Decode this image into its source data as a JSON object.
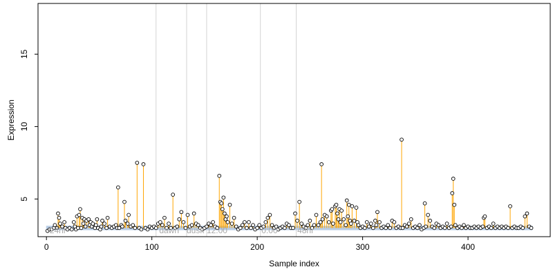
{
  "chart_data": {
    "type": "scatter",
    "title": "",
    "xlabel": "Sample index",
    "ylabel": "Expression",
    "xlim": [
      -8,
      478
    ],
    "ylim": [
      2.4,
      18.5
    ],
    "x_ticks": [
      0,
      100,
      200,
      300,
      400
    ],
    "y_ticks": [
      5,
      10,
      15
    ],
    "baseline": 3.0,
    "vertical_lines": [
      104,
      133,
      152,
      203,
      237
    ],
    "annotations": [
      {
        "label": "24hr",
        "x": 3
      },
      {
        "label": "dawn",
        "x": 107
      },
      {
        "label": "dusk",
        "x": 133
      },
      {
        "label": "12:00",
        "x": 152
      },
      {
        "label": "0:00",
        "x": 204
      },
      {
        "label": "48hr",
        "x": 238
      }
    ],
    "colors": {
      "spike": "#ffa500",
      "baseline_band": "#b9cde5",
      "point_edge": "#000000",
      "point_fill": "#ffffff",
      "vline": "#d3d3d3",
      "annotation": "#a8a8a8"
    },
    "series": [
      {
        "points": [
          [
            1,
            2.8
          ],
          [
            3,
            2.9
          ],
          [
            5,
            2.9
          ],
          [
            7,
            3.0
          ],
          [
            8,
            3.2
          ],
          [
            10,
            3.0
          ],
          [
            11,
            4.0
          ],
          [
            12,
            3.7
          ],
          [
            13,
            3.3
          ],
          [
            15,
            3.1
          ],
          [
            17,
            3.4
          ],
          [
            18,
            3.0
          ],
          [
            20,
            2.9
          ],
          [
            22,
            3.0
          ],
          [
            24,
            2.9
          ],
          [
            26,
            3.4
          ],
          [
            27,
            3.1
          ],
          [
            28,
            2.9
          ],
          [
            29,
            3.8
          ],
          [
            30,
            3.0
          ],
          [
            31,
            3.9
          ],
          [
            32,
            4.3
          ],
          [
            33,
            3.0
          ],
          [
            34,
            3.7
          ],
          [
            35,
            3.3
          ],
          [
            36,
            3.6
          ],
          [
            37,
            3.1
          ],
          [
            38,
            3.5
          ],
          [
            40,
            3.6
          ],
          [
            41,
            3.2
          ],
          [
            42,
            3.4
          ],
          [
            43,
            3.1
          ],
          [
            44,
            3.3
          ],
          [
            46,
            3.0
          ],
          [
            47,
            3.2
          ],
          [
            48,
            3.6
          ],
          [
            49,
            3.0
          ],
          [
            51,
            2.9
          ],
          [
            52,
            3.1
          ],
          [
            53,
            3.5
          ],
          [
            55,
            3.3
          ],
          [
            57,
            3.0
          ],
          [
            58,
            3.7
          ],
          [
            60,
            3.1
          ],
          [
            62,
            3.0
          ],
          [
            64,
            3.1
          ],
          [
            66,
            3.2
          ],
          [
            67,
            3.0
          ],
          [
            68,
            5.8
          ],
          [
            69,
            3.0
          ],
          [
            71,
            3.2
          ],
          [
            72,
            3.1
          ],
          [
            74,
            4.8
          ],
          [
            75,
            3.5
          ],
          [
            77,
            3.3
          ],
          [
            78,
            3.9
          ],
          [
            80,
            3.1
          ],
          [
            82,
            3.2
          ],
          [
            84,
            3.0
          ],
          [
            86,
            7.5
          ],
          [
            88,
            3.0
          ],
          [
            90,
            2.9
          ],
          [
            92,
            7.4
          ],
          [
            94,
            3.0
          ],
          [
            96,
            2.9
          ],
          [
            98,
            3.1
          ],
          [
            100,
            3.0
          ],
          [
            102,
            3.1
          ],
          [
            104,
            3.0
          ],
          [
            106,
            3.3
          ],
          [
            108,
            3.4
          ],
          [
            110,
            3.2
          ],
          [
            112,
            3.7
          ],
          [
            114,
            3.0
          ],
          [
            116,
            3.3
          ],
          [
            118,
            3.0
          ],
          [
            120,
            5.3
          ],
          [
            122,
            3.0
          ],
          [
            124,
            3.1
          ],
          [
            126,
            3.6
          ],
          [
            128,
            4.1
          ],
          [
            130,
            3.4
          ],
          [
            132,
            3.0
          ],
          [
            134,
            3.9
          ],
          [
            136,
            3.1
          ],
          [
            138,
            3.2
          ],
          [
            140,
            4.0
          ],
          [
            142,
            3.3
          ],
          [
            144,
            3.2
          ],
          [
            146,
            3.0
          ],
          [
            148,
            2.9
          ],
          [
            150,
            3.0
          ],
          [
            152,
            3.1
          ],
          [
            154,
            3.3
          ],
          [
            156,
            3.2
          ],
          [
            158,
            3.4
          ],
          [
            160,
            3.1
          ],
          [
            162,
            3.0
          ],
          [
            164,
            6.6
          ],
          [
            165,
            4.8
          ],
          [
            166,
            4.7
          ],
          [
            167,
            4.3
          ],
          [
            168,
            5.1
          ],
          [
            169,
            4.0
          ],
          [
            170,
            3.6
          ],
          [
            171,
            3.8
          ],
          [
            172,
            3.4
          ],
          [
            174,
            4.6
          ],
          [
            176,
            3.3
          ],
          [
            178,
            3.7
          ],
          [
            180,
            3.1
          ],
          [
            182,
            2.9
          ],
          [
            184,
            3.0
          ],
          [
            186,
            3.2
          ],
          [
            188,
            3.4
          ],
          [
            190,
            3.0
          ],
          [
            192,
            3.4
          ],
          [
            194,
            3.0
          ],
          [
            196,
            3.2
          ],
          [
            198,
            2.9
          ],
          [
            200,
            3.0
          ],
          [
            202,
            3.2
          ],
          [
            204,
            3.0
          ],
          [
            206,
            3.1
          ],
          [
            208,
            3.4
          ],
          [
            210,
            3.7
          ],
          [
            212,
            3.9
          ],
          [
            214,
            3.2
          ],
          [
            216,
            3.0
          ],
          [
            218,
            3.1
          ],
          [
            220,
            2.9
          ],
          [
            222,
            3.0
          ],
          [
            224,
            3.1
          ],
          [
            226,
            3.0
          ],
          [
            228,
            3.3
          ],
          [
            230,
            3.2
          ],
          [
            232,
            3.0
          ],
          [
            234,
            3.0
          ],
          [
            236,
            4.0
          ],
          [
            238,
            3.5
          ],
          [
            240,
            4.8
          ],
          [
            242,
            3.3
          ],
          [
            244,
            3.1
          ],
          [
            246,
            3.0
          ],
          [
            248,
            3.2
          ],
          [
            250,
            3.5
          ],
          [
            252,
            3.0
          ],
          [
            254,
            3.2
          ],
          [
            256,
            3.9
          ],
          [
            258,
            3.2
          ],
          [
            260,
            3.4
          ],
          [
            261,
            7.4
          ],
          [
            262,
            3.6
          ],
          [
            264,
            3.9
          ],
          [
            266,
            3.8
          ],
          [
            268,
            3.4
          ],
          [
            270,
            4.2
          ],
          [
            271,
            4.3
          ],
          [
            272,
            3.3
          ],
          [
            274,
            4.5
          ],
          [
            275,
            4.6
          ],
          [
            276,
            4.0
          ],
          [
            277,
            3.6
          ],
          [
            278,
            4.3
          ],
          [
            279,
            3.4
          ],
          [
            280,
            4.2
          ],
          [
            282,
            3.6
          ],
          [
            284,
            3.2
          ],
          [
            285,
            4.9
          ],
          [
            286,
            3.8
          ],
          [
            287,
            4.6
          ],
          [
            288,
            3.5
          ],
          [
            289,
            3.3
          ],
          [
            290,
            4.5
          ],
          [
            292,
            3.5
          ],
          [
            294,
            4.4
          ],
          [
            295,
            3.4
          ],
          [
            296,
            3.2
          ],
          [
            298,
            3.0
          ],
          [
            300,
            3.1
          ],
          [
            302,
            3.0
          ],
          [
            304,
            3.4
          ],
          [
            306,
            3.1
          ],
          [
            308,
            3.3
          ],
          [
            310,
            3.0
          ],
          [
            312,
            3.5
          ],
          [
            313,
            3.2
          ],
          [
            314,
            4.1
          ],
          [
            316,
            3.4
          ],
          [
            318,
            3.0
          ],
          [
            320,
            3.1
          ],
          [
            322,
            3.0
          ],
          [
            324,
            3.2
          ],
          [
            326,
            3.0
          ],
          [
            328,
            3.5
          ],
          [
            330,
            3.4
          ],
          [
            332,
            3.0
          ],
          [
            334,
            3.1
          ],
          [
            336,
            3.0
          ],
          [
            337,
            9.1
          ],
          [
            338,
            3.0
          ],
          [
            340,
            3.2
          ],
          [
            342,
            3.1
          ],
          [
            344,
            3.3
          ],
          [
            346,
            3.6
          ],
          [
            348,
            3.0
          ],
          [
            350,
            3.1
          ],
          [
            352,
            3.0
          ],
          [
            354,
            3.2
          ],
          [
            356,
            2.9
          ],
          [
            358,
            3.0
          ],
          [
            359,
            4.7
          ],
          [
            360,
            3.1
          ],
          [
            362,
            3.9
          ],
          [
            364,
            3.5
          ],
          [
            366,
            3.1
          ],
          [
            368,
            3.0
          ],
          [
            370,
            3.3
          ],
          [
            372,
            3.2
          ],
          [
            374,
            3.0
          ],
          [
            376,
            3.1
          ],
          [
            378,
            3.0
          ],
          [
            380,
            3.3
          ],
          [
            382,
            3.0
          ],
          [
            384,
            3.1
          ],
          [
            385,
            5.4
          ],
          [
            386,
            6.4
          ],
          [
            387,
            4.6
          ],
          [
            388,
            3.2
          ],
          [
            390,
            3.0
          ],
          [
            392,
            3.1
          ],
          [
            394,
            3.0
          ],
          [
            396,
            3.2
          ],
          [
            398,
            3.0
          ],
          [
            400,
            3.1
          ],
          [
            402,
            3.0
          ],
          [
            404,
            3.0
          ],
          [
            406,
            3.1
          ],
          [
            408,
            3.0
          ],
          [
            410,
            3.1
          ],
          [
            412,
            3.0
          ],
          [
            414,
            3.1
          ],
          [
            415,
            3.7
          ],
          [
            416,
            3.8
          ],
          [
            418,
            3.0
          ],
          [
            420,
            3.1
          ],
          [
            422,
            3.0
          ],
          [
            424,
            3.3
          ],
          [
            426,
            3.0
          ],
          [
            428,
            3.1
          ],
          [
            430,
            3.0
          ],
          [
            432,
            3.1
          ],
          [
            434,
            3.0
          ],
          [
            436,
            3.1
          ],
          [
            438,
            3.0
          ],
          [
            440,
            4.5
          ],
          [
            442,
            3.0
          ],
          [
            444,
            3.1
          ],
          [
            446,
            3.0
          ],
          [
            448,
            3.0
          ],
          [
            450,
            3.1
          ],
          [
            452,
            3.0
          ],
          [
            454,
            3.8
          ],
          [
            456,
            4.0
          ],
          [
            458,
            3.1
          ],
          [
            460,
            3.0
          ]
        ]
      }
    ]
  }
}
